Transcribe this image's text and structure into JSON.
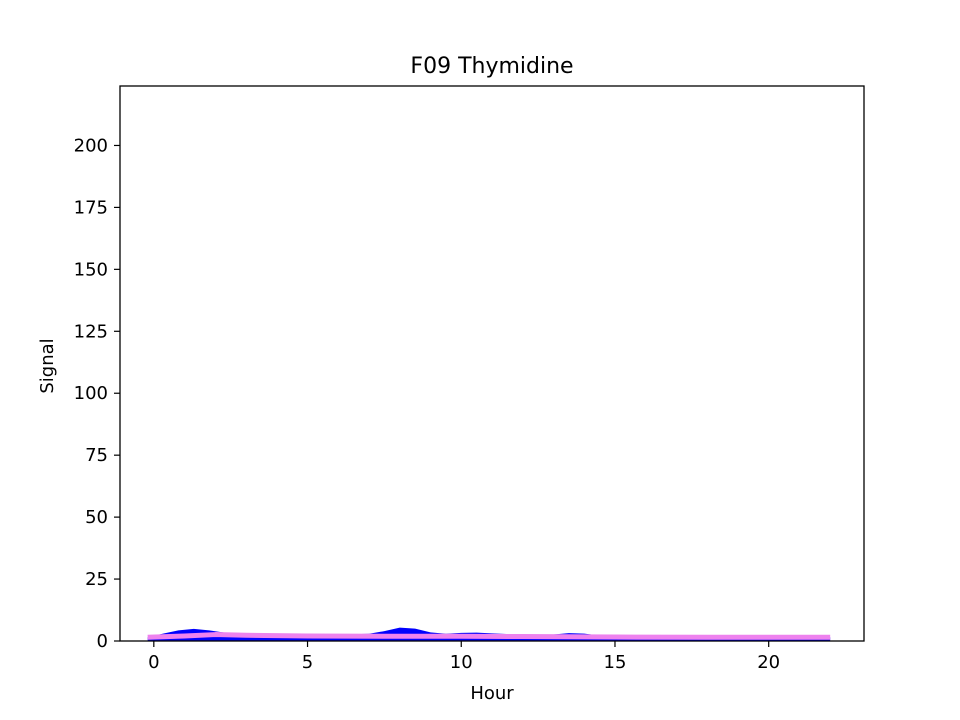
{
  "chart_data": {
    "type": "area",
    "title": "F09 Thymidine",
    "xlabel": "Hour",
    "ylabel": "Signal",
    "xlim": [
      -1.1,
      23.1
    ],
    "ylim": [
      0,
      224
    ],
    "xticks": [
      0,
      5,
      10,
      15,
      20
    ],
    "yticks": [
      0,
      25,
      50,
      75,
      100,
      125,
      150,
      175,
      200
    ],
    "grid": false,
    "legend": "none",
    "series": [
      {
        "kind": "area",
        "color": "#0000ff",
        "x": [
          -0.2,
          0.3,
          0.8,
          1.3,
          1.8,
          2.3,
          3.0,
          4.0,
          5.0,
          6.0,
          7.0,
          7.5,
          8.0,
          8.5,
          9.0,
          9.5,
          10.0,
          10.5,
          11.0,
          12.0,
          12.5,
          13.0,
          13.5,
          14.0,
          14.5,
          15.0,
          16.0,
          18.0,
          20.0,
          22.0
        ],
        "y": [
          1.5,
          3.0,
          4.3,
          4.9,
          4.3,
          3.4,
          2.9,
          2.4,
          2.2,
          2.5,
          2.9,
          4.0,
          5.4,
          5.0,
          3.5,
          2.9,
          3.3,
          3.4,
          3.1,
          2.5,
          2.2,
          2.6,
          3.2,
          3.0,
          2.2,
          1.6,
          1.5,
          1.5,
          1.5,
          1.5
        ]
      },
      {
        "kind": "line",
        "color": "#ee82ee",
        "x": [
          -0.2,
          1.0,
          2.0,
          3.0,
          5.0,
          8.0,
          10.0,
          12.0,
          15.0,
          18.0,
          22.0
        ],
        "y": [
          1.5,
          2.0,
          2.6,
          2.3,
          2.0,
          1.9,
          1.9,
          1.8,
          1.6,
          1.5,
          1.5
        ]
      }
    ]
  }
}
